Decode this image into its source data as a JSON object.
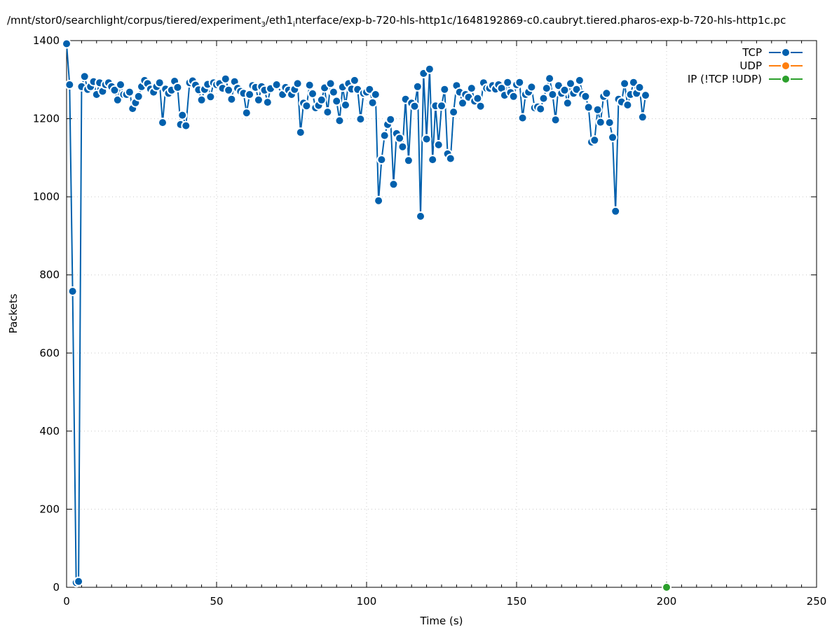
{
  "title": {
    "part1": "/mnt/stor0/searchlight/corpus/tiered/experiment",
    "sub1": "3",
    "part2": "/eth1",
    "sub2": "i",
    "part3": "nterface/exp-b-720-hls-http1c/1648192869-c0.caubryt.tiered.pharos-exp-b-720-hls-http1c.pc"
  },
  "colors": {
    "tcp": "#0060ad",
    "udp": "#ff7f0e",
    "ip": "#2ca02c",
    "grid": "#c8c8c8"
  },
  "chart_data": {
    "type": "line",
    "xlabel": "Time (s)",
    "ylabel": "Packets",
    "xlim": [
      0,
      250
    ],
    "ylim": [
      0,
      1400
    ],
    "xticks": [
      0,
      50,
      100,
      150,
      200,
      250
    ],
    "yticks": [
      0,
      200,
      400,
      600,
      800,
      1000,
      1200,
      1400
    ],
    "grid": true,
    "legend_position": "top-right",
    "series": [
      {
        "name": "TCP",
        "points": [
          [
            0,
            1392
          ],
          [
            1,
            1287
          ],
          [
            2,
            758
          ],
          [
            3.2,
            12
          ],
          [
            4,
            15
          ],
          [
            5,
            1282
          ],
          [
            6,
            1308
          ],
          [
            7,
            1275
          ],
          [
            8,
            1282
          ],
          [
            9,
            1295
          ],
          [
            10,
            1262
          ],
          [
            11,
            1292
          ],
          [
            12,
            1270
          ],
          [
            13,
            1287
          ],
          [
            14,
            1292
          ],
          [
            15,
            1282
          ],
          [
            16,
            1273
          ],
          [
            17,
            1248
          ],
          [
            18,
            1287
          ],
          [
            19,
            1262
          ],
          [
            20,
            1262
          ],
          [
            21,
            1268
          ],
          [
            22,
            1226
          ],
          [
            23,
            1241
          ],
          [
            24,
            1257
          ],
          [
            25,
            1282
          ],
          [
            26,
            1298
          ],
          [
            27,
            1290
          ],
          [
            28,
            1276
          ],
          [
            29,
            1268
          ],
          [
            30,
            1282
          ],
          [
            31,
            1292
          ],
          [
            32,
            1190
          ],
          [
            33,
            1276
          ],
          [
            34,
            1265
          ],
          [
            35,
            1273
          ],
          [
            36,
            1296
          ],
          [
            37,
            1280
          ],
          [
            38,
            1185
          ],
          [
            38.6,
            1209
          ],
          [
            39.8,
            1182
          ],
          [
            41,
            1292
          ],
          [
            42,
            1297
          ],
          [
            43,
            1286
          ],
          [
            44,
            1274
          ],
          [
            45,
            1248
          ],
          [
            46,
            1275
          ],
          [
            47,
            1288
          ],
          [
            48,
            1256
          ],
          [
            49,
            1292
          ],
          [
            50,
            1287
          ],
          [
            51,
            1290
          ],
          [
            52,
            1278
          ],
          [
            53,
            1302
          ],
          [
            54,
            1273
          ],
          [
            55,
            1250
          ],
          [
            56,
            1295
          ],
          [
            57,
            1278
          ],
          [
            58,
            1270
          ],
          [
            59,
            1265
          ],
          [
            60,
            1215
          ],
          [
            61,
            1262
          ],
          [
            62,
            1285
          ],
          [
            63,
            1280
          ],
          [
            64,
            1248
          ],
          [
            65,
            1282
          ],
          [
            66,
            1273
          ],
          [
            67,
            1242
          ],
          [
            68,
            1277
          ],
          [
            70,
            1287
          ],
          [
            72,
            1262
          ],
          [
            73,
            1280
          ],
          [
            74,
            1273
          ],
          [
            75,
            1262
          ],
          [
            76,
            1275
          ],
          [
            77,
            1290
          ],
          [
            78,
            1165
          ],
          [
            79,
            1240
          ],
          [
            80,
            1233
          ],
          [
            81,
            1286
          ],
          [
            82,
            1264
          ],
          [
            83,
            1228
          ],
          [
            84,
            1234
          ],
          [
            85,
            1248
          ],
          [
            86,
            1279
          ],
          [
            87,
            1217
          ],
          [
            88,
            1290
          ],
          [
            89,
            1268
          ],
          [
            90,
            1245
          ],
          [
            91,
            1195
          ],
          [
            92,
            1281
          ],
          [
            93,
            1235
          ],
          [
            94,
            1290
          ],
          [
            95,
            1276
          ],
          [
            96,
            1298
          ],
          [
            97,
            1275
          ],
          [
            98,
            1199
          ],
          [
            99,
            1265
          ],
          [
            100,
            1268
          ],
          [
            101,
            1275
          ],
          [
            102,
            1241
          ],
          [
            103,
            1262
          ],
          [
            104,
            990
          ],
          [
            105,
            1095
          ],
          [
            106,
            1157
          ],
          [
            107,
            1185
          ],
          [
            108,
            1198
          ],
          [
            109,
            1032
          ],
          [
            110,
            1162
          ],
          [
            111,
            1150
          ],
          [
            112,
            1128
          ],
          [
            113,
            1250
          ],
          [
            114,
            1093
          ],
          [
            115,
            1240
          ],
          [
            116,
            1232
          ],
          [
            117,
            1282
          ],
          [
            118,
            950
          ],
          [
            119,
            1316
          ],
          [
            120,
            1148
          ],
          [
            121,
            1327
          ],
          [
            122,
            1095
          ],
          [
            123,
            1233
          ],
          [
            124,
            1133
          ],
          [
            125,
            1233
          ],
          [
            126,
            1275
          ],
          [
            127,
            1110
          ],
          [
            128,
            1098
          ],
          [
            129,
            1217
          ],
          [
            130,
            1285
          ],
          [
            131,
            1268
          ],
          [
            132,
            1240
          ],
          [
            133,
            1262
          ],
          [
            134,
            1255
          ],
          [
            135,
            1278
          ],
          [
            136,
            1245
          ],
          [
            137,
            1252
          ],
          [
            138,
            1232
          ],
          [
            139,
            1292
          ],
          [
            140,
            1278
          ],
          [
            141,
            1278
          ],
          [
            142,
            1285
          ],
          [
            143,
            1276
          ],
          [
            144,
            1287
          ],
          [
            145,
            1278
          ],
          [
            146,
            1260
          ],
          [
            147,
            1293
          ],
          [
            148,
            1267
          ],
          [
            149,
            1257
          ],
          [
            150,
            1287
          ],
          [
            151,
            1293
          ],
          [
            152,
            1202
          ],
          [
            153,
            1262
          ],
          [
            154,
            1268
          ],
          [
            155,
            1281
          ],
          [
            156,
            1228
          ],
          [
            157,
            1230
          ],
          [
            158,
            1225
          ],
          [
            159,
            1252
          ],
          [
            160,
            1278
          ],
          [
            161,
            1303
          ],
          [
            162,
            1262
          ],
          [
            163,
            1197
          ],
          [
            164,
            1285
          ],
          [
            165,
            1265
          ],
          [
            166,
            1273
          ],
          [
            167,
            1240
          ],
          [
            168,
            1290
          ],
          [
            169,
            1265
          ],
          [
            170,
            1275
          ],
          [
            171,
            1298
          ],
          [
            172,
            1262
          ],
          [
            173,
            1257
          ],
          [
            174,
            1229
          ],
          [
            175,
            1140
          ],
          [
            176,
            1145
          ],
          [
            177,
            1223
          ],
          [
            178,
            1191
          ],
          [
            179,
            1257
          ],
          [
            180,
            1265
          ],
          [
            181,
            1190
          ],
          [
            182,
            1152
          ],
          [
            183,
            963
          ],
          [
            184,
            1250
          ],
          [
            185,
            1243
          ],
          [
            186,
            1290
          ],
          [
            187,
            1235
          ],
          [
            188,
            1262
          ],
          [
            189,
            1293
          ],
          [
            190,
            1265
          ],
          [
            191,
            1280
          ],
          [
            192,
            1204
          ],
          [
            193,
            1260
          ]
        ]
      },
      {
        "name": "UDP",
        "points": []
      },
      {
        "name": "IP (!TCP  !UDP)",
        "points": [
          [
            200,
            0
          ]
        ]
      }
    ]
  }
}
